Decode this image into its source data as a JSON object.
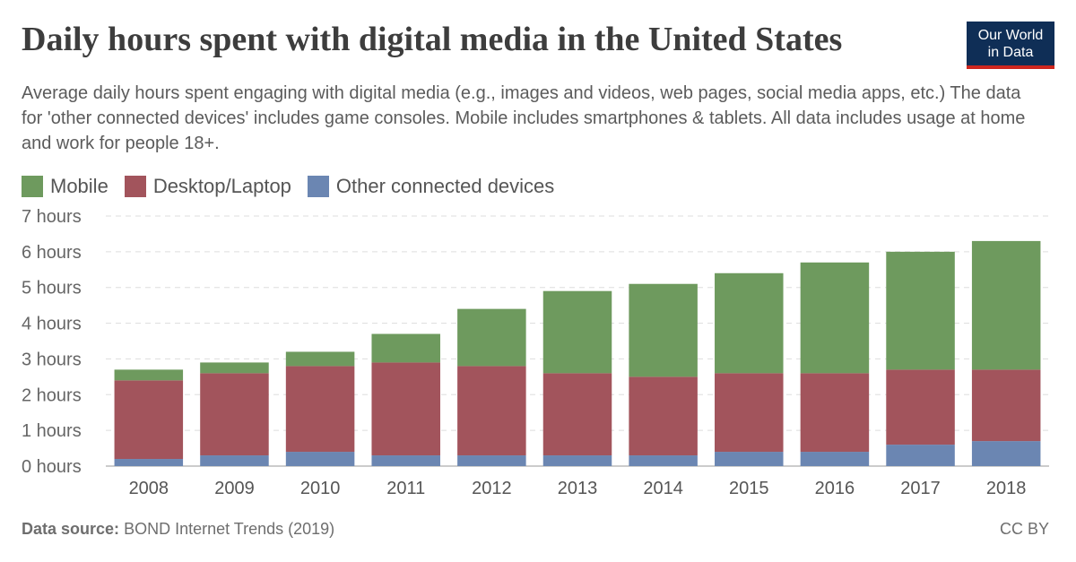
{
  "header": {
    "title": "Daily hours spent with digital media in the United States",
    "subtitle": "Average daily hours spent engaging with digital media (e.g., images and videos, web pages, social media apps, etc.) The data for 'other connected devices' includes game consoles. Mobile includes smartphones & tablets. All data includes usage at home and work for people 18+.",
    "logo_line1": "Our World",
    "logo_line2": "in Data"
  },
  "footer": {
    "source_label": "Data source:",
    "source_text": "BOND Internet Trends (2019)",
    "license": "CC BY"
  },
  "colors": {
    "mobile": "#6e9a5e",
    "desktop": "#a2545c",
    "other": "#6b86b2",
    "grid": "#dddddd"
  },
  "chart_data": {
    "type": "bar",
    "stacked": true,
    "categories": [
      "2008",
      "2009",
      "2010",
      "2011",
      "2012",
      "2013",
      "2014",
      "2015",
      "2016",
      "2017",
      "2018"
    ],
    "series": [
      {
        "name": "Other connected devices",
        "values": [
          0.2,
          0.3,
          0.4,
          0.3,
          0.3,
          0.3,
          0.3,
          0.4,
          0.4,
          0.6,
          0.7
        ]
      },
      {
        "name": "Desktop/Laptop",
        "values": [
          2.2,
          2.3,
          2.4,
          2.6,
          2.5,
          2.3,
          2.2,
          2.2,
          2.2,
          2.1,
          2.0
        ]
      },
      {
        "name": "Mobile",
        "values": [
          0.3,
          0.3,
          0.4,
          0.8,
          1.6,
          2.3,
          2.6,
          2.8,
          3.1,
          3.3,
          3.6
        ]
      }
    ],
    "legend": [
      "Mobile",
      "Desktop/Laptop",
      "Other connected devices"
    ],
    "y_ticks": [
      "0 hours",
      "1 hours",
      "2 hours",
      "3 hours",
      "4 hours",
      "5 hours",
      "6 hours",
      "7 hours"
    ],
    "ylim": [
      0,
      7
    ],
    "grid": true,
    "legend_position": "top-left"
  }
}
